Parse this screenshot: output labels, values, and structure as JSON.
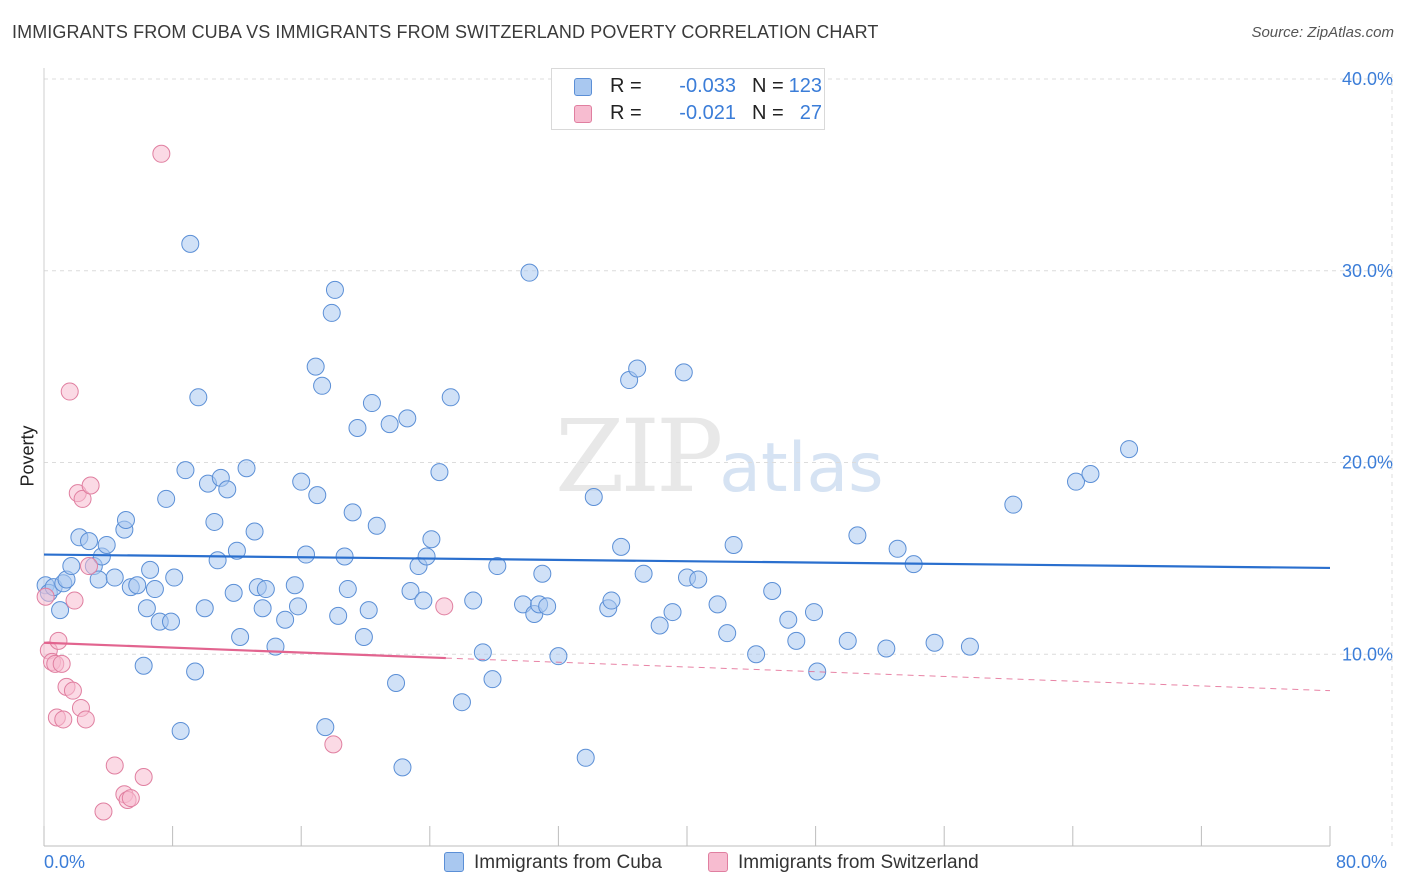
{
  "title": "IMMIGRANTS FROM CUBA VS IMMIGRANTS FROM SWITZERLAND POVERTY CORRELATION CHART",
  "source": "Source: ZipAtlas.com",
  "watermark": {
    "zip": "ZIP",
    "atlas": "atlas"
  },
  "legend": {
    "rows": [
      {
        "r_label": "R =",
        "r_value": "-0.033",
        "n_label": "N =",
        "n_value": "123",
        "color": "#a9c8f0",
        "border": "#5b8fd6"
      },
      {
        "r_label": "R =",
        "r_value": "-0.021",
        "n_label": "N =",
        "n_value": "27",
        "color": "#f7bcd0",
        "border": "#e07fa0"
      }
    ]
  },
  "chart_data": {
    "type": "scatter",
    "title": "IMMIGRANTS FROM CUBA VS IMMIGRANTS FROM SWITZERLAND POVERTY CORRELATION CHART",
    "xlabel": "",
    "ylabel": "Poverty",
    "xlim": [
      0,
      80
    ],
    "ylim": [
      0,
      40
    ],
    "x_tick_labels": [
      "0.0%",
      "80.0%"
    ],
    "y_tick_labels": [
      "10.0%",
      "20.0%",
      "30.0%",
      "40.0%"
    ],
    "y_ticks": [
      10,
      20,
      30,
      40
    ],
    "grid": true,
    "series": [
      {
        "name": "Immigrants from Cuba",
        "color": "#a9c8f0",
        "stroke": "#5b8fd6",
        "trend": {
          "x": [
            0,
            80
          ],
          "y": [
            15.2,
            14.5
          ],
          "color": "#2a6fce"
        },
        "points": [
          [
            0.1,
            13.6
          ],
          [
            0.3,
            13.2
          ],
          [
            0.6,
            13.5
          ],
          [
            1.0,
            12.3
          ],
          [
            1.2,
            13.7
          ],
          [
            1.4,
            13.9
          ],
          [
            1.7,
            14.6
          ],
          [
            2.2,
            16.1
          ],
          [
            2.8,
            15.9
          ],
          [
            3.1,
            14.6
          ],
          [
            3.4,
            13.9
          ],
          [
            3.6,
            15.1
          ],
          [
            3.9,
            15.7
          ],
          [
            4.4,
            14.0
          ],
          [
            5.0,
            16.5
          ],
          [
            5.1,
            17.0
          ],
          [
            5.4,
            13.5
          ],
          [
            5.8,
            13.6
          ],
          [
            6.2,
            9.4
          ],
          [
            6.4,
            12.4
          ],
          [
            6.6,
            14.4
          ],
          [
            6.9,
            13.4
          ],
          [
            7.2,
            11.7
          ],
          [
            7.6,
            18.1
          ],
          [
            7.9,
            11.7
          ],
          [
            8.1,
            14.0
          ],
          [
            8.5,
            6.0
          ],
          [
            8.8,
            19.6
          ],
          [
            9.1,
            31.4
          ],
          [
            9.4,
            9.1
          ],
          [
            9.6,
            23.4
          ],
          [
            10.0,
            12.4
          ],
          [
            10.2,
            18.9
          ],
          [
            10.6,
            16.9
          ],
          [
            10.8,
            14.9
          ],
          [
            11.0,
            19.2
          ],
          [
            11.4,
            18.6
          ],
          [
            11.8,
            13.2
          ],
          [
            12.0,
            15.4
          ],
          [
            12.2,
            10.9
          ],
          [
            12.6,
            19.7
          ],
          [
            13.1,
            16.4
          ],
          [
            13.3,
            13.5
          ],
          [
            13.6,
            12.4
          ],
          [
            13.8,
            13.4
          ],
          [
            14.4,
            10.4
          ],
          [
            15.0,
            11.8
          ],
          [
            15.6,
            13.6
          ],
          [
            15.8,
            12.5
          ],
          [
            16.0,
            19.0
          ],
          [
            16.3,
            15.2
          ],
          [
            16.9,
            25.0
          ],
          [
            17.0,
            18.3
          ],
          [
            17.3,
            24.0
          ],
          [
            17.5,
            6.2
          ],
          [
            17.9,
            27.8
          ],
          [
            18.1,
            29.0
          ],
          [
            18.3,
            12.0
          ],
          [
            18.7,
            15.1
          ],
          [
            18.9,
            13.4
          ],
          [
            19.2,
            17.4
          ],
          [
            19.5,
            21.8
          ],
          [
            19.9,
            10.9
          ],
          [
            20.2,
            12.3
          ],
          [
            20.4,
            23.1
          ],
          [
            20.7,
            16.7
          ],
          [
            21.5,
            22.0
          ],
          [
            21.9,
            8.5
          ],
          [
            22.3,
            4.1
          ],
          [
            22.6,
            22.3
          ],
          [
            22.8,
            13.3
          ],
          [
            23.3,
            14.6
          ],
          [
            23.6,
            12.8
          ],
          [
            23.8,
            15.1
          ],
          [
            24.1,
            16.0
          ],
          [
            24.6,
            19.5
          ],
          [
            25.3,
            23.4
          ],
          [
            26.0,
            7.5
          ],
          [
            26.7,
            12.8
          ],
          [
            27.3,
            10.1
          ],
          [
            27.9,
            8.7
          ],
          [
            28.2,
            14.6
          ],
          [
            29.8,
            12.6
          ],
          [
            30.2,
            29.9
          ],
          [
            30.5,
            12.1
          ],
          [
            30.8,
            12.6
          ],
          [
            31.0,
            14.2
          ],
          [
            31.3,
            12.5
          ],
          [
            32.0,
            9.9
          ],
          [
            33.7,
            4.6
          ],
          [
            34.2,
            18.2
          ],
          [
            35.1,
            12.4
          ],
          [
            35.3,
            12.8
          ],
          [
            35.9,
            15.6
          ],
          [
            36.4,
            24.3
          ],
          [
            36.9,
            24.9
          ],
          [
            37.3,
            14.2
          ],
          [
            38.3,
            11.5
          ],
          [
            39.1,
            12.2
          ],
          [
            39.8,
            24.7
          ],
          [
            40.0,
            14.0
          ],
          [
            40.7,
            13.9
          ],
          [
            41.9,
            12.6
          ],
          [
            42.5,
            11.1
          ],
          [
            42.9,
            15.7
          ],
          [
            44.3,
            10.0
          ],
          [
            45.3,
            13.3
          ],
          [
            46.3,
            11.8
          ],
          [
            46.8,
            10.7
          ],
          [
            47.9,
            12.2
          ],
          [
            48.1,
            9.1
          ],
          [
            50.0,
            10.7
          ],
          [
            50.6,
            16.2
          ],
          [
            52.4,
            10.3
          ],
          [
            53.1,
            15.5
          ],
          [
            54.1,
            14.7
          ],
          [
            55.4,
            10.6
          ],
          [
            57.6,
            10.4
          ],
          [
            60.3,
            17.8
          ],
          [
            64.2,
            19.0
          ],
          [
            65.1,
            19.4
          ],
          [
            67.5,
            20.7
          ]
        ]
      },
      {
        "name": "Immigrants from Switzerland",
        "color": "#f7bcd0",
        "stroke": "#e07fa0",
        "trend": {
          "x": [
            0,
            25
          ],
          "y": [
            10.6,
            9.8
          ],
          "dash_to_x": 80,
          "dash_y": 8.1,
          "color": "#e2648f"
        },
        "points": [
          [
            0.1,
            13.0
          ],
          [
            0.3,
            10.2
          ],
          [
            0.5,
            9.6
          ],
          [
            0.7,
            9.5
          ],
          [
            0.8,
            6.7
          ],
          [
            0.9,
            10.7
          ],
          [
            1.1,
            9.5
          ],
          [
            1.2,
            6.6
          ],
          [
            1.4,
            8.3
          ],
          [
            1.6,
            23.7
          ],
          [
            1.8,
            8.1
          ],
          [
            1.9,
            12.8
          ],
          [
            2.1,
            18.4
          ],
          [
            2.3,
            7.2
          ],
          [
            2.4,
            18.1
          ],
          [
            2.6,
            6.6
          ],
          [
            2.8,
            14.6
          ],
          [
            2.9,
            18.8
          ],
          [
            3.7,
            1.8
          ],
          [
            4.4,
            4.2
          ],
          [
            5.0,
            2.7
          ],
          [
            5.2,
            2.4
          ],
          [
            5.4,
            2.5
          ],
          [
            6.2,
            3.6
          ],
          [
            7.3,
            36.1
          ],
          [
            18.0,
            5.3
          ],
          [
            24.9,
            12.5
          ]
        ]
      }
    ]
  },
  "bottom_legend": [
    {
      "label": "Immigrants from Cuba",
      "color": "#a9c8f0",
      "border": "#5b8fd6"
    },
    {
      "label": "Immigrants from Switzerland",
      "color": "#f7bcd0",
      "border": "#e07fa0"
    }
  ]
}
